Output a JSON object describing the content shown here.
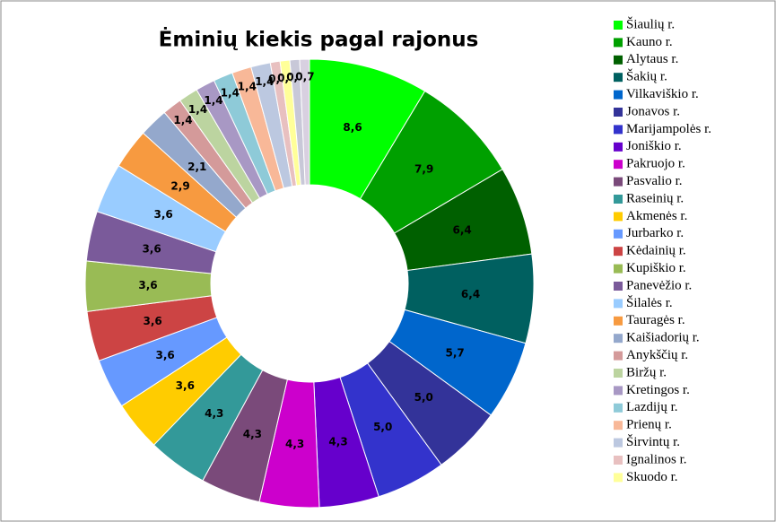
{
  "chart_data": {
    "type": "donut",
    "title": "Ėminių kiekis pagal rajonus",
    "categories": [
      "Šiaulių r.",
      "Kauno r.",
      "Alytaus r.",
      "Šakių r.",
      "Vilkaviškio r.",
      "Jonavos r.",
      "Marijampolės r.",
      "Joniškio r.",
      "Pakruojo r.",
      "Pasvalio r.",
      "Raseinių r.",
      "Akmenės r.",
      "Jurbarko r.",
      "Kėdainių r.",
      "Kupiškio r.",
      "Panevėžio r.",
      "Šilalės r.",
      "Tauragės r.",
      "Kaišiadorių r.",
      "Anykščių r.",
      "Biržų r.",
      "Kretingos r.",
      "Lazdijų r.",
      "Prienų r.",
      "Širvintų r.",
      "Ignalinos r.",
      "Skuodo r.",
      null,
      null
    ],
    "values": [
      8.6,
      7.9,
      6.4,
      6.4,
      5.7,
      5.0,
      5.0,
      4.3,
      4.3,
      4.3,
      4.3,
      3.6,
      3.6,
      3.6,
      3.6,
      3.6,
      3.6,
      2.9,
      2.1,
      1.4,
      1.4,
      1.4,
      1.4,
      1.4,
      1.4,
      0.7,
      0.7,
      0.7,
      0.7
    ],
    "value_labels": [
      "8,6",
      "7,9",
      "6,4",
      "6,4",
      "5,7",
      "5,0",
      "5,0",
      "4,3",
      "4,3",
      "4,3",
      "4,3",
      "3,6",
      "3,6",
      "3,6",
      "3,6",
      "3,6",
      "3,6",
      "2,9",
      "2,1",
      "1,4",
      "1,4",
      "1,4",
      "1,4",
      "1,4",
      "1,4",
      "0,7",
      "0,7",
      "0,7",
      "0,7"
    ],
    "colors": [
      "#00ff00",
      "#00a000",
      "#006000",
      "#006060",
      "#0066cc",
      "#333399",
      "#3333cc",
      "#6600cc",
      "#cc00cc",
      "#7a4a7a",
      "#339999",
      "#ffcc00",
      "#6699ff",
      "#cc4444",
      "#99bb55",
      "#7a5a9a",
      "#99ccff",
      "#f79a40",
      "#94a8cc",
      "#d49a9a",
      "#bcd4a0",
      "#a898c4",
      "#8ecad8",
      "#f8b898",
      "#bcc8e0",
      "#e8c0c0",
      "#ffff99",
      "#c8c8d8",
      "#d8d0e0"
    ],
    "legend": "right"
  }
}
